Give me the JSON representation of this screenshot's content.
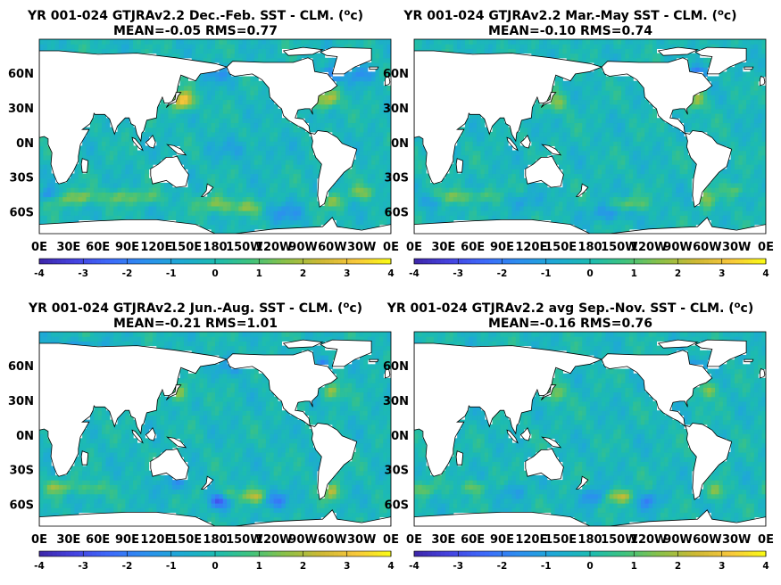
{
  "colormap": [
    "#3e26a8",
    "#4543e0",
    "#3d6afb",
    "#2c8fef",
    "#1ea9d5",
    "#1cbbb2",
    "#3fc37e",
    "#8bc148",
    "#cdb834",
    "#f8c73c",
    "#f9fb15"
  ],
  "land_color": "#ffffff",
  "chart_data": [
    {
      "type": "heatmap",
      "title_line1": "YR 001-024 GTJRAv2.2  Dec.-Feb. SST - CLM. (",
      "title_sup": "o",
      "title_end": "c)",
      "title_line2": "MEAN=-0.05   RMS=0.77",
      "mean": -0.05,
      "rms": 0.77,
      "season": "DJF",
      "x_ticks": [
        "0E",
        "30E",
        "60E",
        "90E",
        "120E",
        "150E",
        "180",
        "150W",
        "120W",
        "90W",
        "60W",
        "30W",
        "0E"
      ],
      "y_ticks": [
        "60N",
        "30N",
        "0N",
        "30S",
        "60S"
      ],
      "y_values": [
        60,
        30,
        0,
        -30,
        -60
      ],
      "xlim": [
        0,
        360
      ],
      "ylim": [
        -78,
        90
      ],
      "colorbar_ticks": [
        "-4",
        "-3",
        "-2",
        "-1",
        "0",
        "1",
        "2",
        "3",
        "4"
      ],
      "clim": [
        -4,
        4
      ]
    },
    {
      "type": "heatmap",
      "title_line1": "YR 001-024 GTJRAv2.2 Mar.-May SST - CLM. (",
      "title_sup": "o",
      "title_end": "c)",
      "title_line2": "MEAN=-0.10   RMS=0.74",
      "mean": -0.1,
      "rms": 0.74,
      "season": "MAM",
      "x_ticks": [
        "0E",
        "30E",
        "60E",
        "90E",
        "120E",
        "150E",
        "180",
        "150W",
        "120W",
        "90W",
        "60W",
        "30W",
        "0E"
      ],
      "y_ticks": [
        "60N",
        "30N",
        "0N",
        "30S",
        "60S"
      ],
      "y_values": [
        60,
        30,
        0,
        -30,
        -60
      ],
      "xlim": [
        0,
        360
      ],
      "ylim": [
        -78,
        90
      ],
      "colorbar_ticks": [
        "-4",
        "-3",
        "-2",
        "-1",
        "0",
        "1",
        "2",
        "3",
        "4"
      ],
      "clim": [
        -4,
        4
      ]
    },
    {
      "type": "heatmap",
      "title_line1": "YR 001-024 GTJRAv2.2 Jun.-Aug. SST - CLM. (",
      "title_sup": "o",
      "title_end": "c)",
      "title_line2": "MEAN=-0.21   RMS=1.01",
      "mean": -0.21,
      "rms": 1.01,
      "season": "JJA",
      "x_ticks": [
        "0E",
        "30E",
        "60E",
        "90E",
        "120E",
        "150E",
        "180",
        "150W",
        "120W",
        "90W",
        "60W",
        "30W",
        "0E"
      ],
      "y_ticks": [
        "60N",
        "30N",
        "0N",
        "30S",
        "60S"
      ],
      "y_values": [
        60,
        30,
        0,
        -30,
        -60
      ],
      "xlim": [
        0,
        360
      ],
      "ylim": [
        -78,
        90
      ],
      "colorbar_ticks": [
        "-4",
        "-3",
        "-2",
        "-1",
        "0",
        "1",
        "2",
        "3",
        "4"
      ],
      "clim": [
        -4,
        4
      ]
    },
    {
      "type": "heatmap",
      "title_line1": "YR 001-024 GTJRAv2.2 avg Sep.-Nov. SST - CLM. (",
      "title_sup": "o",
      "title_end": "c)",
      "title_line2": "MEAN=-0.16   RMS=0.76",
      "mean": -0.16,
      "rms": 0.76,
      "season": "SON",
      "x_ticks": [
        "0E",
        "30E",
        "60E",
        "90E",
        "120E",
        "150E",
        "180",
        "150W",
        "120W",
        "90W",
        "60W",
        "30W",
        "0E"
      ],
      "y_ticks": [
        "60N",
        "30N",
        "0N",
        "30S",
        "60S"
      ],
      "y_values": [
        60,
        30,
        0,
        -30,
        -60
      ],
      "xlim": [
        0,
        360
      ],
      "ylim": [
        -78,
        90
      ],
      "colorbar_ticks": [
        "-4",
        "-3",
        "-2",
        "-1",
        "0",
        "1",
        "2",
        "3",
        "4"
      ],
      "clim": [
        -4,
        4
      ]
    }
  ]
}
